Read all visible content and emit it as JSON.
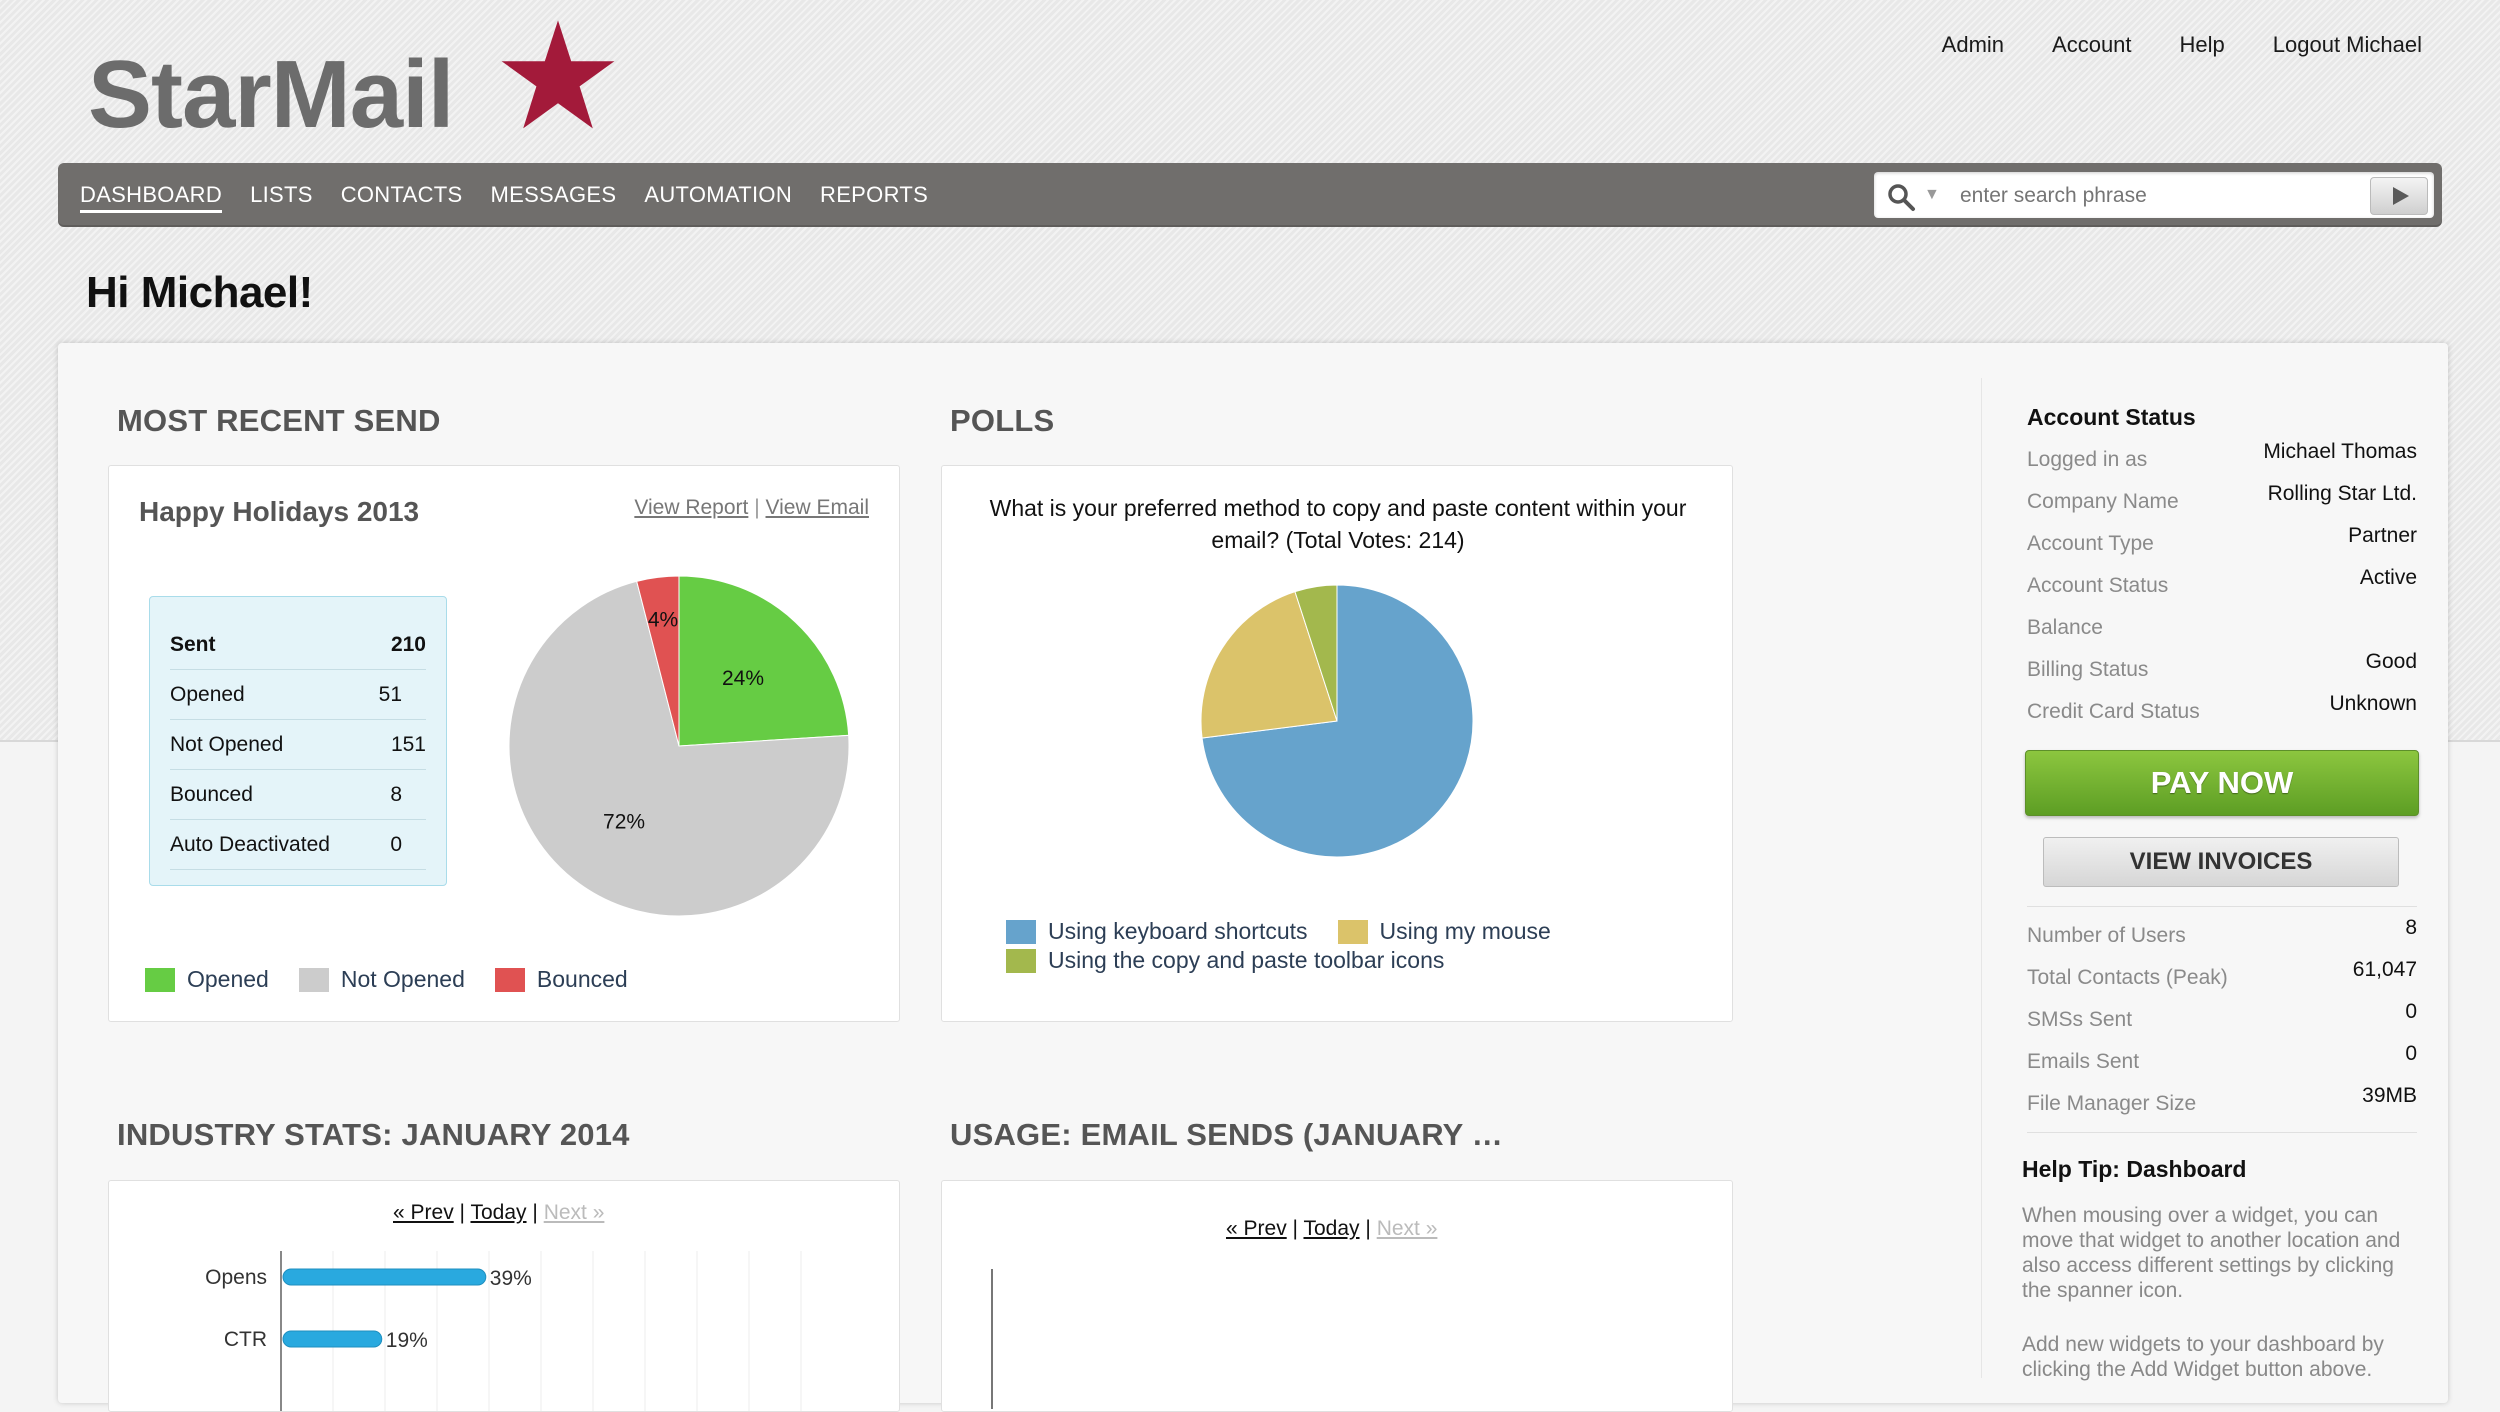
{
  "brand": {
    "name": "StarMail",
    "star_color": "#a31a3a"
  },
  "top_links": [
    "Admin",
    "Account",
    "Help",
    "Logout Michael"
  ],
  "nav": {
    "items": [
      "DASHBOARD",
      "LISTS",
      "CONTACTS",
      "MESSAGES",
      "AUTOMATION",
      "REPORTS"
    ],
    "active": "DASHBOARD"
  },
  "search": {
    "placeholder": "enter search phrase",
    "icon": "search-icon"
  },
  "greeting": "Hi Michael!",
  "recent_send": {
    "section_title": "MOST RECENT SEND",
    "campaign": "Happy Holidays 2013",
    "view_report": "View Report",
    "separator": "|",
    "view_email": "View Email",
    "stats": [
      {
        "label": "Sent",
        "value": "210"
      },
      {
        "label": "Opened",
        "value": "51"
      },
      {
        "label": "Not Opened",
        "value": "151"
      },
      {
        "label": "Bounced",
        "value": "8"
      },
      {
        "label": "Auto Deactivated",
        "value": "0"
      }
    ],
    "legend": [
      {
        "label": "Opened",
        "color": "#66cc44"
      },
      {
        "label": "Not Opened",
        "color": "#cccccc"
      },
      {
        "label": "Bounced",
        "color": "#e05252"
      }
    ]
  },
  "polls": {
    "section_title": "POLLS",
    "question": "What is your preferred method to copy and paste content within your email? (Total Votes: 214)",
    "legend": [
      {
        "label": "Using keyboard shortcuts",
        "color": "#66a3cc"
      },
      {
        "label": "Using my mouse",
        "color": "#dbc36a"
      },
      {
        "label": "Using the copy and paste toolbar icons",
        "color": "#a3b84d"
      }
    ]
  },
  "chart_data": [
    {
      "type": "pie",
      "categories": [
        "Opened",
        "Not Opened",
        "Bounced"
      ],
      "values": [
        24,
        72,
        4
      ],
      "labels": [
        "24%",
        "72%",
        "4%"
      ],
      "colors": [
        "#66cc44",
        "#cccccc",
        "#e05252"
      ]
    },
    {
      "type": "pie",
      "categories": [
        "Using keyboard shortcuts",
        "Using my mouse",
        "Using the copy and paste toolbar icons"
      ],
      "values": [
        73,
        22,
        5
      ],
      "colors": [
        "#66a3cc",
        "#dbc36a",
        "#a3b84d"
      ]
    },
    {
      "type": "bar",
      "categories": [
        "Opens",
        "CTR"
      ],
      "values": [
        39,
        19
      ],
      "labels": [
        "39%",
        "19%"
      ],
      "xlim": [
        0,
        100
      ]
    }
  ],
  "industry": {
    "section_title": "INDUSTRY STATS: JANUARY 2014",
    "pager": {
      "prev": "« Prev",
      "today": "Today",
      "next": "Next »",
      "sep": "|"
    }
  },
  "usage": {
    "section_title": "USAGE: EMAIL SENDS (JANUARY …",
    "pager": {
      "prev": "« Prev",
      "today": "Today",
      "next": "Next »",
      "sep": "|"
    }
  },
  "account": {
    "title": "Account Status",
    "rows": [
      {
        "label": "Logged in as",
        "value": "Michael Thomas"
      },
      {
        "label": "Company Name",
        "value": "Rolling Star Ltd."
      },
      {
        "label": "Account Type",
        "value": "Partner"
      },
      {
        "label": "Account Status",
        "value": "Active"
      },
      {
        "label": "Balance",
        "value": ""
      },
      {
        "label": "Billing Status",
        "value": "Good"
      },
      {
        "label": "Credit Card Status",
        "value": "Unknown"
      }
    ],
    "pay_now": "PAY NOW",
    "view_invoices": "VIEW INVOICES",
    "usage_rows": [
      {
        "label": "Number of Users",
        "value": "8"
      },
      {
        "label": "Total Contacts (Peak)",
        "value": "61,047"
      },
      {
        "label": "SMSs Sent",
        "value": "0"
      },
      {
        "label": "Emails Sent",
        "value": "0"
      },
      {
        "label": "File Manager Size",
        "value": "39MB"
      }
    ]
  },
  "help": {
    "title": "Help Tip: Dashboard",
    "para1": "When mousing over a widget, you can move that widget to another location and also access different settings by clicking the spanner icon.",
    "para2": "Add new widgets to your dashboard by clicking the Add Widget button above."
  }
}
